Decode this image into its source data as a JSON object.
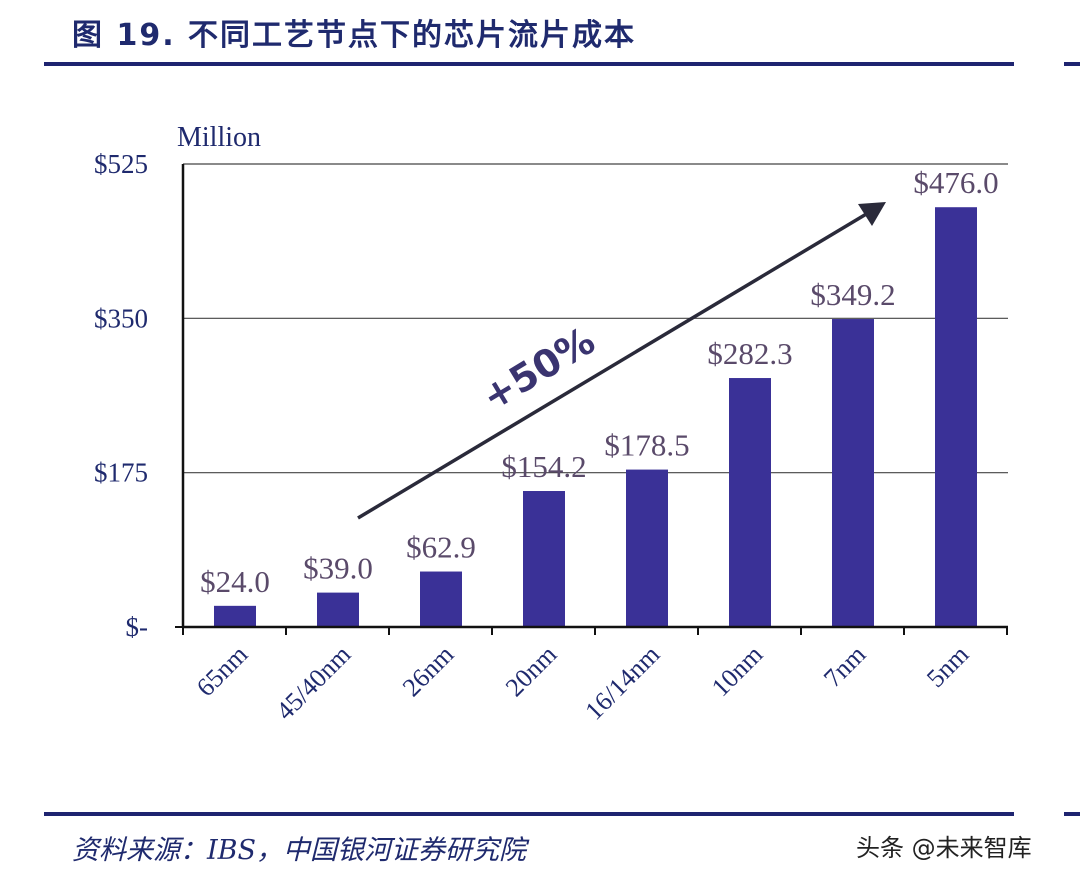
{
  "figure": {
    "title": "图 19. 不同工艺节点下的芯片流片成本",
    "source": "资料来源：IBS，中国银河证券研究院",
    "watermark": "头条 @未来智库"
  },
  "colors": {
    "bar": "#3a3197",
    "rule": "#1e2470",
    "text": "#1f2a6e",
    "arrow": "#2a2a3a"
  },
  "chart_data": {
    "type": "bar",
    "title": "",
    "unit_label": "Million",
    "categories": [
      "65nm",
      "45/40nm",
      "26nm",
      "20nm",
      "16/14nm",
      "10nm",
      "7nm",
      "5nm"
    ],
    "values": [
      24.0,
      39.0,
      62.9,
      154.2,
      178.5,
      282.3,
      349.2,
      476.0
    ],
    "data_labels": [
      "$24.0",
      "$39.0",
      "$62.9",
      "$154.2",
      "$178.5",
      "$282.3",
      "$349.2",
      "$476.0"
    ],
    "ylim": [
      0,
      525
    ],
    "yticks": [
      0,
      175,
      350,
      525
    ],
    "ytick_labels": [
      "$-",
      "$175",
      "$350",
      "$525"
    ],
    "grid": true,
    "legend": "none",
    "annotation": "+50%"
  }
}
